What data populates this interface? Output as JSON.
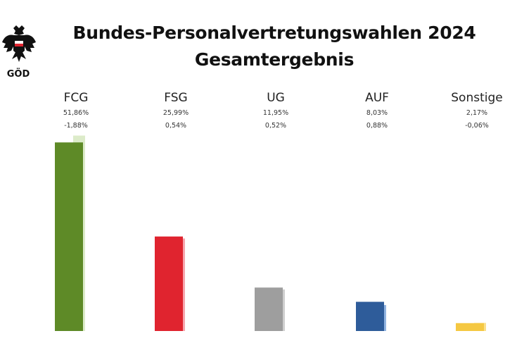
{
  "logo": {
    "text": "GÖD"
  },
  "title": {
    "line1": "Bundes-Personalvertretungswahlen 2024",
    "line2": "Gesamtergebnis"
  },
  "chart_data": {
    "type": "bar",
    "title": "Bundes-Personalvertretungswahlen 2024 Gesamtergebnis",
    "categories": [
      "FCG",
      "FSG",
      "UG",
      "AUF",
      "Sonstige"
    ],
    "series": [
      {
        "values": [
          51.86,
          25.99,
          11.95,
          8.03,
          2.17
        ]
      },
      {
        "values": [
          53.74,
          25.45,
          11.43,
          7.15,
          2.23
        ]
      }
    ],
    "value_labels": [
      "51,86%",
      "25,99%",
      "11,95%",
      "8,03%",
      "2,17%"
    ],
    "change_labels": [
      "-1,88%",
      "0,54%",
      "0,52%",
      "0,88%",
      "-0,06%"
    ],
    "colors": {
      "current": [
        "#5e8a27",
        "#e0242f",
        "#9e9e9e",
        "#2e5c9a",
        "#f5c842"
      ],
      "previous": [
        "#dcebc9",
        "#f7a5ad",
        "#cfcfcf",
        "#90b3e0",
        "#fbe08a"
      ]
    },
    "ylim": [
      0,
      55
    ],
    "grid": false,
    "legend": "none"
  }
}
